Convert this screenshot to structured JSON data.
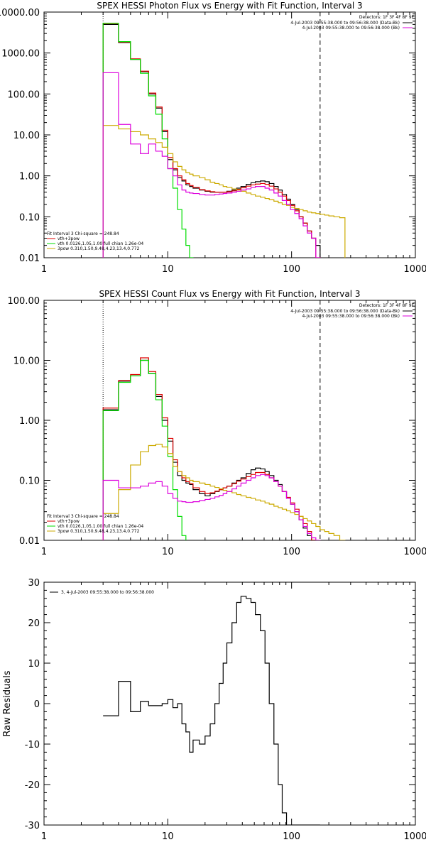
{
  "chart_data": [
    {
      "type": "line",
      "title": "SPEX HESSI Photon Flux vs Energy with Fit Function, Interval 3",
      "xscale": "log",
      "yscale": "log",
      "xlim": [
        1,
        1000
      ],
      "ylim": [
        0.01,
        10000
      ],
      "x_ticks": [
        "1",
        "10",
        "100",
        "1000"
      ],
      "y_ticks": [
        "0.01",
        "0.10",
        "1.00",
        "10.00",
        "100.00",
        "1000.00",
        "10000.00"
      ],
      "detectors": "Detectors: 1F 3F 4F 8F 9F",
      "time_lines": [
        {
          "text": "4-Jul-2003 09:55:38.000 to 09:56:38.000 (Data-Bk)",
          "color": "#000000"
        },
        {
          "text": "4-Jul-2003 09:55:38.000 to 09:56:38.000 (Bk)",
          "color": "#dd00dd"
        }
      ],
      "legend_header": "Fit Interval 3   Chi-square = 248.84",
      "legend": [
        {
          "text": "vth+3pow",
          "color": "#dd0000"
        },
        {
          "text": "vth 0.0126,1.05,1.00  full chian 1.26e-04",
          "color": "#00dd00"
        },
        {
          "text": "3pow 0.310,1.50,9.48,4.23,13.4,0.772",
          "color": "#ccaa00"
        }
      ],
      "vlines": [
        {
          "x": 3.0,
          "style": "dotted"
        },
        {
          "x": 170,
          "style": "dashed"
        }
      ],
      "bin_edges": [
        3.0,
        4.0,
        5.0,
        6.0,
        7.0,
        8.0,
        9.0,
        10.0,
        11.0,
        12.0,
        13.0,
        14.0,
        15.0,
        16.0,
        18.0,
        20.0,
        22.0,
        24.0,
        26.0,
        28.0,
        30.0,
        33.0,
        36.0,
        39.0,
        43.0,
        47.0,
        51.0,
        56.0,
        61.0,
        66.0,
        72.0,
        78.0,
        84.0,
        91.0,
        98.0,
        106.0,
        115.0,
        124.0,
        134.0,
        145.0,
        157.0,
        170.0,
        185.0,
        200.0,
        220.0,
        245.0,
        270.0,
        280.0
      ],
      "series": [
        {
          "name": "Data-Bk",
          "color": "#000000",
          "values": [
            5000,
            1800,
            700,
            350,
            100,
            45,
            12,
            2.5,
            1.4,
            0.9,
            0.75,
            0.6,
            0.55,
            0.5,
            0.45,
            0.42,
            0.4,
            0.4,
            0.4,
            0.4,
            0.42,
            0.45,
            0.5,
            0.55,
            0.62,
            0.68,
            0.72,
            0.75,
            0.72,
            0.65,
            0.55,
            0.45,
            0.35,
            0.27,
            0.2,
            0.15,
            0.1,
            0.07,
            0.045,
            0.03,
            0.02,
            null,
            null,
            null,
            null,
            null,
            null
          ]
        },
        {
          "name": "vth+3pow",
          "color": "#dd0000",
          "values": [
            5200,
            1850,
            720,
            360,
            105,
            48,
            13,
            2.8,
            1.5,
            1.0,
            0.8,
            0.65,
            0.58,
            0.52,
            0.46,
            0.43,
            0.41,
            0.4,
            0.4,
            0.4,
            0.41,
            0.43,
            0.47,
            0.51,
            0.56,
            0.6,
            0.63,
            0.65,
            0.62,
            0.56,
            0.48,
            0.4,
            0.32,
            0.25,
            0.19,
            0.14,
            0.1,
            0.07,
            0.045,
            0.03,
            0.01,
            null,
            null,
            null,
            null,
            null,
            null
          ]
        },
        {
          "name": "vth",
          "color": "#00dd00",
          "values": [
            5300,
            1900,
            700,
            320,
            90,
            32,
            8,
            1.5,
            0.5,
            0.15,
            0.05,
            0.02,
            0.01,
            null,
            null,
            null,
            null,
            null,
            null,
            null,
            null,
            null,
            null,
            null,
            null,
            null,
            null,
            null,
            null,
            null,
            null,
            null,
            null,
            null,
            null,
            null,
            null,
            null,
            null,
            null,
            null,
            null,
            null,
            null,
            null,
            null,
            null
          ]
        },
        {
          "name": "3pow",
          "color": "#ccaa00",
          "values": [
            17,
            14,
            12,
            10,
            8,
            6.5,
            5,
            3.5,
            2.2,
            1.7,
            1.4,
            1.2,
            1.1,
            1.0,
            0.9,
            0.8,
            0.7,
            0.65,
            0.6,
            0.55,
            0.52,
            0.48,
            0.45,
            0.42,
            0.38,
            0.35,
            0.32,
            0.3,
            0.28,
            0.26,
            0.24,
            0.22,
            0.2,
            0.19,
            0.17,
            0.16,
            0.15,
            0.14,
            0.13,
            0.125,
            0.12,
            0.115,
            0.11,
            0.105,
            0.1,
            0.095,
            null
          ]
        },
        {
          "name": "Bk",
          "color": "#dd00dd",
          "values": [
            330,
            18,
            6,
            3.5,
            6,
            4,
            3,
            1.5,
            1.0,
            0.6,
            0.45,
            0.4,
            0.38,
            0.37,
            0.35,
            0.34,
            0.34,
            0.35,
            0.36,
            0.37,
            0.38,
            0.4,
            0.42,
            0.45,
            0.48,
            0.52,
            0.55,
            0.55,
            0.5,
            0.45,
            0.38,
            0.32,
            0.25,
            0.2,
            0.15,
            0.12,
            0.09,
            0.06,
            0.04,
            0.03,
            0.01,
            null,
            null,
            null,
            null,
            null,
            null
          ]
        }
      ]
    },
    {
      "type": "line",
      "title": "SPEX HESSI Count Flux vs Energy with Fit Function, Interval 3",
      "xscale": "log",
      "yscale": "log",
      "xlim": [
        1,
        1000
      ],
      "ylim": [
        0.01,
        100
      ],
      "x_ticks": [
        "1",
        "10",
        "100",
        "1000"
      ],
      "y_ticks": [
        "0.01",
        "0.10",
        "1.00",
        "10.00",
        "100.00"
      ],
      "detectors": "Detectors: 1F 3F 4F 8F 9F",
      "time_lines": [
        {
          "text": "4-Jul-2003 09:55:38.000 to 09:56:38.000 (Data-Bk)",
          "color": "#000000"
        },
        {
          "text": "4-Jul-2003 09:55:38.000 to 09:56:38.000 (Bk)",
          "color": "#dd00dd"
        }
      ],
      "legend_header": "Fit Interval 3   Chi-square = 248.84",
      "legend": [
        {
          "text": "vth+3pow",
          "color": "#dd0000"
        },
        {
          "text": "vth 0.0126,1.05,1.00  full chian 1.26e-04",
          "color": "#00dd00"
        },
        {
          "text": "3pow 0.310,1.50,9.48,4.23,13.4,0.772",
          "color": "#ccaa00"
        }
      ],
      "vlines": [
        {
          "x": 3.0,
          "style": "dotted"
        },
        {
          "x": 170,
          "style": "dashed"
        }
      ],
      "bin_edges": [
        3.0,
        4.0,
        5.0,
        6.0,
        7.0,
        8.0,
        9.0,
        10.0,
        11.0,
        12.0,
        13.0,
        14.0,
        15.0,
        16.0,
        18.0,
        20.0,
        22.0,
        24.0,
        26.0,
        28.0,
        30.0,
        33.0,
        36.0,
        39.0,
        43.0,
        47.0,
        51.0,
        56.0,
        61.0,
        66.0,
        72.0,
        78.0,
        84.0,
        91.0,
        98.0,
        106.0,
        115.0,
        124.0,
        134.0,
        145.0,
        157.0,
        170.0,
        185.0,
        200.0,
        220.0,
        245.0,
        270.0,
        280.0
      ],
      "series": [
        {
          "name": "Data-Bk",
          "color": "#000000",
          "values": [
            1.5,
            4.5,
            5.5,
            10,
            6,
            2.5,
            1.0,
            0.45,
            0.2,
            0.12,
            0.1,
            0.09,
            0.085,
            0.07,
            0.06,
            0.055,
            0.06,
            0.065,
            0.07,
            0.075,
            0.08,
            0.09,
            0.1,
            0.11,
            0.13,
            0.15,
            0.16,
            0.155,
            0.14,
            0.12,
            0.1,
            0.085,
            0.065,
            0.05,
            0.04,
            0.03,
            0.022,
            0.016,
            0.012,
            0.01,
            null,
            null,
            null,
            null,
            null,
            null,
            null
          ]
        },
        {
          "name": "vth+3pow",
          "color": "#dd0000",
          "values": [
            1.6,
            4.6,
            5.8,
            11,
            6.5,
            2.7,
            1.1,
            0.5,
            0.22,
            0.14,
            0.11,
            0.095,
            0.088,
            0.075,
            0.065,
            0.06,
            0.062,
            0.066,
            0.07,
            0.075,
            0.08,
            0.088,
            0.097,
            0.105,
            0.115,
            0.125,
            0.135,
            0.135,
            0.125,
            0.11,
            0.095,
            0.08,
            0.065,
            0.052,
            0.042,
            0.033,
            0.025,
            0.019,
            0.014,
            0.01,
            null,
            null,
            null,
            null,
            null,
            null,
            null
          ]
        },
        {
          "name": "vth",
          "color": "#00dd00",
          "values": [
            1.45,
            4.3,
            5.5,
            10,
            6,
            2.2,
            0.8,
            0.25,
            0.07,
            0.025,
            0.012,
            null,
            null,
            null,
            null,
            null,
            null,
            null,
            null,
            null,
            null,
            null,
            null,
            null,
            null,
            null,
            null,
            null,
            null,
            null,
            null,
            null,
            null,
            null,
            null,
            null,
            null,
            null,
            null,
            null,
            null,
            null,
            null,
            null,
            null,
            null,
            null
          ]
        },
        {
          "name": "3pow",
          "color": "#ccaa00",
          "values": [
            0.028,
            0.07,
            0.18,
            0.3,
            0.38,
            0.4,
            0.36,
            0.28,
            0.17,
            0.14,
            0.12,
            0.11,
            0.1,
            0.095,
            0.09,
            0.085,
            0.08,
            0.076,
            0.072,
            0.068,
            0.065,
            0.062,
            0.058,
            0.055,
            0.052,
            0.05,
            0.047,
            0.045,
            0.042,
            0.04,
            0.037,
            0.035,
            0.033,
            0.031,
            0.029,
            0.027,
            0.025,
            0.023,
            0.021,
            0.019,
            0.017,
            0.015,
            0.014,
            0.013,
            0.012,
            0.01,
            null
          ]
        },
        {
          "name": "Bk",
          "color": "#dd00dd",
          "values": [
            0.1,
            0.075,
            0.075,
            0.08,
            0.09,
            0.095,
            0.08,
            0.06,
            0.05,
            0.045,
            0.044,
            0.043,
            0.043,
            0.044,
            0.046,
            0.048,
            0.05,
            0.053,
            0.056,
            0.06,
            0.065,
            0.072,
            0.08,
            0.09,
            0.1,
            0.11,
            0.12,
            0.125,
            0.12,
            0.11,
            0.095,
            0.08,
            0.065,
            0.05,
            0.04,
            0.03,
            0.022,
            0.017,
            0.013,
            0.011,
            0.01,
            null,
            null,
            null,
            null,
            null,
            null
          ]
        }
      ]
    },
    {
      "type": "line",
      "title": "",
      "xscale": "log",
      "yscale": "linear",
      "xlim": [
        1,
        1000
      ],
      "ylim": [
        -30,
        30
      ],
      "x_ticks": [
        "1",
        "10",
        "100",
        "1000"
      ],
      "y_ticks": [
        "-30",
        "-20",
        "-10",
        "0",
        "10",
        "20",
        "30"
      ],
      "ylabel": "Raw Residuals",
      "legend": [
        {
          "text": "3,  4-Jul-2003 09:55:38.000 to 09:56:38.000",
          "color": "#000000"
        }
      ],
      "bin_edges": [
        3.0,
        4.0,
        5.0,
        6.0,
        7.0,
        8.0,
        9.0,
        10.0,
        11.0,
        12.0,
        13.0,
        14.0,
        15.0,
        16.0,
        18.0,
        20.0,
        22.0,
        24.0,
        26.0,
        28.0,
        30.0,
        33.0,
        36.0,
        39.0,
        43.0,
        47.0,
        51.0,
        56.0,
        61.0,
        66.0,
        72.0,
        78.0,
        84.0,
        91.0,
        98.0,
        106.0,
        115.0,
        124.0,
        134.0,
        145.0,
        157.0,
        170.0
      ],
      "series": [
        {
          "name": "",
          "color": "#000000",
          "values": [
            -3,
            5.5,
            -2,
            0.5,
            -0.5,
            -0.5,
            0,
            1,
            -1,
            0,
            -5,
            -7,
            -12,
            -9,
            -10,
            -8,
            -5,
            0,
            5,
            10,
            15,
            20,
            25,
            26.5,
            26,
            25,
            22,
            18,
            10,
            0,
            -10,
            -20,
            -27,
            -30,
            -30,
            -30,
            -30,
            -30,
            -30,
            -30,
            -30
          ]
        }
      ]
    }
  ]
}
